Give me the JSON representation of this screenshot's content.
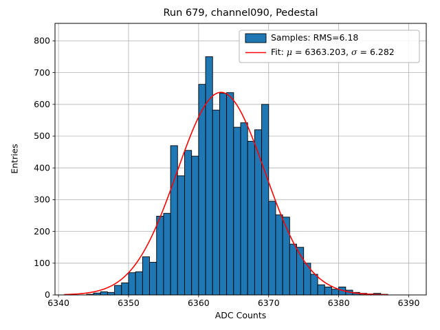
{
  "chart_data": {
    "type": "bar",
    "subtype": "histogram",
    "title": "Run 679, channel090, Pedestal",
    "xlabel": "ADC Counts",
    "ylabel": "Entries",
    "xlim": [
      6339.5,
      6392.5
    ],
    "ylim": [
      0,
      855
    ],
    "xticks": [
      6340,
      6350,
      6360,
      6370,
      6380,
      6390
    ],
    "yticks": [
      0,
      100,
      200,
      300,
      400,
      500,
      600,
      700,
      800
    ],
    "grid": true,
    "bin_width": 1,
    "bin_left_edges": [
      6344,
      6345,
      6346,
      6347,
      6348,
      6349,
      6350,
      6351,
      6352,
      6353,
      6354,
      6355,
      6356,
      6357,
      6358,
      6359,
      6360,
      6361,
      6362,
      6363,
      6364,
      6365,
      6366,
      6367,
      6368,
      6369,
      6370,
      6371,
      6372,
      6373,
      6374,
      6375,
      6376,
      6377,
      6378,
      6379,
      6380,
      6381,
      6382,
      6383,
      6384,
      6385,
      6386
    ],
    "counts": [
      2,
      6,
      10,
      8,
      30,
      38,
      70,
      73,
      120,
      103,
      248,
      257,
      470,
      375,
      455,
      437,
      663,
      750,
      582,
      635,
      637,
      528,
      542,
      484,
      520,
      600,
      295,
      252,
      245,
      160,
      150,
      100,
      65,
      32,
      25,
      18,
      25,
      15,
      8,
      5,
      3,
      5,
      2
    ],
    "bar_color": "#1f77b4",
    "bar_edge_color": "#000000",
    "fit": {
      "mu": 6363.203,
      "sigma": 6.282,
      "amplitude": 638,
      "color": "#ff0000",
      "x_start": 6340.8,
      "x_end": 6387.2
    },
    "legend": {
      "position": "upper right",
      "entries": [
        {
          "marker": "patch",
          "label": "Samples: RMS=6.18"
        },
        {
          "marker": "line",
          "label": "Fit: μ = 6363.203, σ = 6.282"
        }
      ]
    },
    "colors": {
      "grid": "#b0b0b0",
      "frame": "#000000",
      "legend_border": "#b3b3b3",
      "legend_bg": "#ffffff"
    }
  }
}
